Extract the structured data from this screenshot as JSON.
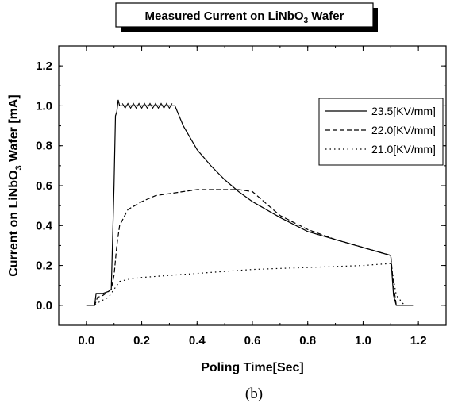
{
  "chart_data": {
    "type": "line",
    "title": "Measured Current on LiNbO₃ Wafer",
    "title_main": "Measured Current on LiNbO",
    "title_sub": "3",
    "title_tail": " Wafer",
    "xlabel": "Poling Time[Sec]",
    "ylabel_main": "Current on LiNbO",
    "ylabel_sub": "3",
    "ylabel_tail": " Wafer [mA]",
    "caption": "(b)",
    "xlim": [
      -0.1,
      1.3
    ],
    "ylim": [
      -0.1,
      1.3
    ],
    "xticks": [
      "0.0",
      "0.2",
      "0.4",
      "0.6",
      "0.8",
      "1.0",
      "1.2"
    ],
    "yticks": [
      "0.0",
      "0.2",
      "0.4",
      "0.6",
      "0.8",
      "1.0",
      "1.2"
    ],
    "legend_position": "top-right",
    "series": [
      {
        "name": "23.5[KV/mm]",
        "style": "solid",
        "x": [
          0.0,
          0.03,
          0.035,
          0.04,
          0.06,
          0.08,
          0.09,
          0.1,
          0.105,
          0.11,
          0.115,
          0.12,
          0.125,
          0.13,
          0.15,
          0.2,
          0.25,
          0.3,
          0.32,
          0.35,
          0.4,
          0.45,
          0.5,
          0.55,
          0.6,
          0.7,
          0.8,
          0.9,
          1.0,
          1.05,
          1.1,
          1.105,
          1.11,
          1.12,
          1.15,
          1.18
        ],
        "y": [
          0.0,
          0.0,
          0.06,
          0.06,
          0.06,
          0.07,
          0.08,
          0.6,
          0.95,
          0.97,
          1.03,
          1.0,
          1.0,
          1.0,
          1.0,
          1.0,
          1.0,
          1.0,
          1.0,
          0.9,
          0.78,
          0.7,
          0.63,
          0.57,
          0.52,
          0.44,
          0.37,
          0.33,
          0.29,
          0.27,
          0.25,
          0.15,
          0.05,
          0.0,
          0.0,
          0.0
        ]
      },
      {
        "name": "22.0[KV/mm]",
        "style": "dashed",
        "x": [
          0.0,
          0.03,
          0.04,
          0.06,
          0.08,
          0.09,
          0.1,
          0.11,
          0.12,
          0.15,
          0.2,
          0.25,
          0.3,
          0.35,
          0.4,
          0.45,
          0.5,
          0.55,
          0.6,
          0.65,
          0.7,
          0.8,
          0.9,
          1.0,
          1.05,
          1.1,
          1.11,
          1.12,
          1.14,
          1.18
        ],
        "y": [
          0.0,
          0.0,
          0.04,
          0.05,
          0.07,
          0.08,
          0.15,
          0.3,
          0.4,
          0.48,
          0.52,
          0.55,
          0.56,
          0.57,
          0.58,
          0.58,
          0.58,
          0.58,
          0.57,
          0.51,
          0.45,
          0.38,
          0.33,
          0.29,
          0.27,
          0.25,
          0.1,
          0.0,
          0.0,
          0.0
        ]
      },
      {
        "name": "21.0[KV/mm]",
        "style": "dotted",
        "x": [
          0.0,
          0.03,
          0.05,
          0.08,
          0.1,
          0.12,
          0.15,
          0.2,
          0.3,
          0.4,
          0.5,
          0.6,
          0.7,
          0.8,
          0.9,
          1.0,
          1.05,
          1.1,
          1.12,
          1.15,
          1.18
        ],
        "y": [
          0.0,
          0.0,
          0.02,
          0.04,
          0.08,
          0.12,
          0.13,
          0.14,
          0.15,
          0.16,
          0.17,
          0.18,
          0.185,
          0.19,
          0.195,
          0.2,
          0.205,
          0.21,
          0.05,
          0.0,
          0.0
        ]
      }
    ]
  }
}
